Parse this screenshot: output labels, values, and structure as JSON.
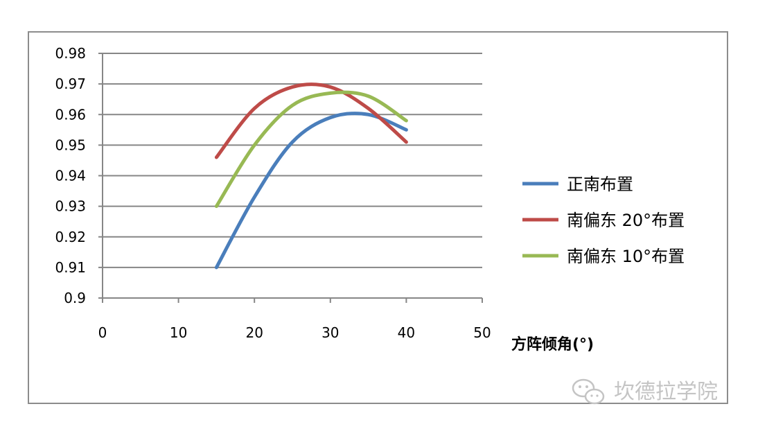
{
  "chart_data": {
    "type": "line",
    "title": "",
    "xlabel": "方阵倾角(°)",
    "ylabel": "",
    "xlim": [
      0,
      50
    ],
    "ylim": [
      0.9,
      0.98
    ],
    "xticks": [
      "0",
      "10",
      "20",
      "30",
      "40",
      "50"
    ],
    "yticks": [
      "0.9",
      "0.91",
      "0.92",
      "0.93",
      "0.94",
      "0.95",
      "0.96",
      "0.97",
      "0.98"
    ],
    "grid": true,
    "legend_position": "right",
    "series": [
      {
        "name": "正南布置",
        "color": "#4a7ebb",
        "x": [
          15,
          20,
          25,
          30,
          35,
          40
        ],
        "y": [
          0.91,
          0.933,
          0.951,
          0.959,
          0.96,
          0.955
        ]
      },
      {
        "name": "南偏东 20°布置",
        "color": "#be4b48",
        "x": [
          15,
          20,
          25,
          30,
          35,
          40
        ],
        "y": [
          0.946,
          0.962,
          0.969,
          0.969,
          0.962,
          0.951
        ]
      },
      {
        "name": "南偏东 10°布置",
        "color": "#98b954",
        "x": [
          15,
          20,
          25,
          30,
          35,
          40
        ],
        "y": [
          0.93,
          0.95,
          0.963,
          0.967,
          0.966,
          0.958
        ]
      }
    ]
  },
  "watermark": {
    "text": "坎德拉学院",
    "icon": "wechat-icon"
  }
}
